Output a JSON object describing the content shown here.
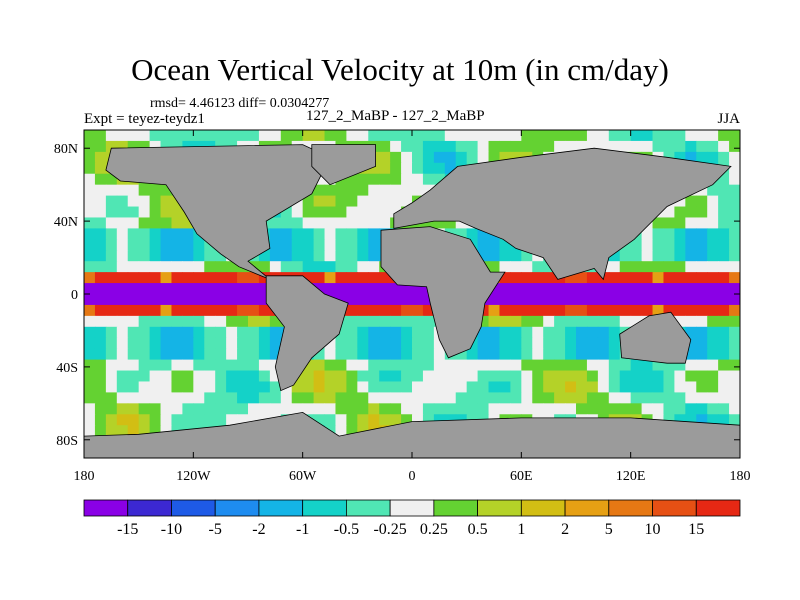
{
  "title": "Ocean Vertical Velocity at 10m (in cm/day)",
  "stats": "rmsd= 4.46123  diff= 0.0304277",
  "experiment": "Expt = teyez-teydz1",
  "runs": "127_2_MaBP - 127_2_MaBP",
  "season": "JJA",
  "colors": {
    "land": "#9b9b9b",
    "bins": [
      "#8a00e6",
      "#3c28d2",
      "#1e5ae6",
      "#1e8cf0",
      "#14b4e6",
      "#14d2c8",
      "#50e6b4",
      "#f0f0f0",
      "#64d232",
      "#b4d228",
      "#d2be14",
      "#e6a014",
      "#e67814",
      "#e65014",
      "#e62814"
    ]
  },
  "chart_data": {
    "type": "heatmap",
    "title": "Ocean Vertical Velocity at 10m (in cm/day)",
    "x_ticks": [
      "180",
      "120W",
      "60W",
      "0",
      "60E",
      "120E",
      "180"
    ],
    "x_tick_values": [
      -180,
      -120,
      -60,
      0,
      60,
      120,
      180
    ],
    "y_ticks": [
      "80N",
      "40N",
      "0",
      "40S",
      "80S"
    ],
    "y_tick_values": [
      80,
      40,
      0,
      -40,
      -80
    ],
    "xlim": [
      -180,
      180
    ],
    "ylim": [
      -90,
      90
    ],
    "colorbar_levels": [
      "-15",
      "-10",
      "-5",
      "-2",
      "-1",
      "-0.5",
      "-0.25",
      "0.25",
      "0.5",
      "1",
      "2",
      "5",
      "10",
      "15"
    ],
    "land_polygons": [
      {
        "name": "north-america",
        "points": [
          [
            -165,
            80
          ],
          [
            -60,
            82
          ],
          [
            -45,
            75
          ],
          [
            -55,
            55
          ],
          [
            -80,
            40
          ],
          [
            -78,
            25
          ],
          [
            -90,
            18
          ],
          [
            -78,
            8
          ],
          [
            -95,
            15
          ],
          [
            -105,
            22
          ],
          [
            -118,
            33
          ],
          [
            -125,
            45
          ],
          [
            -135,
            60
          ],
          [
            -160,
            62
          ],
          [
            -168,
            68
          ]
        ]
      },
      {
        "name": "south-america",
        "points": [
          [
            -80,
            10
          ],
          [
            -60,
            10
          ],
          [
            -48,
            0
          ],
          [
            -35,
            -5
          ],
          [
            -40,
            -22
          ],
          [
            -55,
            -35
          ],
          [
            -65,
            -50
          ],
          [
            -72,
            -53
          ],
          [
            -75,
            -40
          ],
          [
            -70,
            -18
          ],
          [
            -80,
            -5
          ]
        ]
      },
      {
        "name": "africa",
        "points": [
          [
            -17,
            35
          ],
          [
            10,
            37
          ],
          [
            32,
            30
          ],
          [
            43,
            12
          ],
          [
            51,
            12
          ],
          [
            40,
            -5
          ],
          [
            38,
            -18
          ],
          [
            32,
            -30
          ],
          [
            20,
            -35
          ],
          [
            15,
            -25
          ],
          [
            10,
            -5
          ],
          [
            8,
            4
          ],
          [
            -8,
            5
          ],
          [
            -17,
            15
          ]
        ]
      },
      {
        "name": "eurasia",
        "points": [
          [
            -10,
            36
          ],
          [
            -10,
            44
          ],
          [
            0,
            50
          ],
          [
            10,
            57
          ],
          [
            25,
            70
          ],
          [
            60,
            75
          ],
          [
            100,
            80
          ],
          [
            140,
            75
          ],
          [
            175,
            70
          ],
          [
            165,
            60
          ],
          [
            140,
            48
          ],
          [
            122,
            30
          ],
          [
            108,
            20
          ],
          [
            105,
            8
          ],
          [
            100,
            14
          ],
          [
            80,
            8
          ],
          [
            72,
            20
          ],
          [
            57,
            25
          ],
          [
            50,
            30
          ],
          [
            35,
            36
          ],
          [
            26,
            40
          ],
          [
            12,
            40
          ]
        ]
      },
      {
        "name": "australia",
        "points": [
          [
            114,
            -22
          ],
          [
            130,
            -12
          ],
          [
            142,
            -10
          ],
          [
            153,
            -25
          ],
          [
            150,
            -38
          ],
          [
            140,
            -38
          ],
          [
            115,
            -35
          ]
        ]
      },
      {
        "name": "antarctica",
        "points": [
          [
            -180,
            -90
          ],
          [
            180,
            -90
          ],
          [
            180,
            -72
          ],
          [
            120,
            -68
          ],
          [
            60,
            -68
          ],
          [
            0,
            -70
          ],
          [
            -40,
            -78
          ],
          [
            -60,
            -65
          ],
          [
            -100,
            -72
          ],
          [
            -150,
            -77
          ],
          [
            -180,
            -78
          ]
        ]
      },
      {
        "name": "greenland",
        "points": [
          [
            -55,
            82
          ],
          [
            -20,
            82
          ],
          [
            -20,
            70
          ],
          [
            -45,
            60
          ],
          [
            -55,
            70
          ]
        ]
      }
    ]
  }
}
